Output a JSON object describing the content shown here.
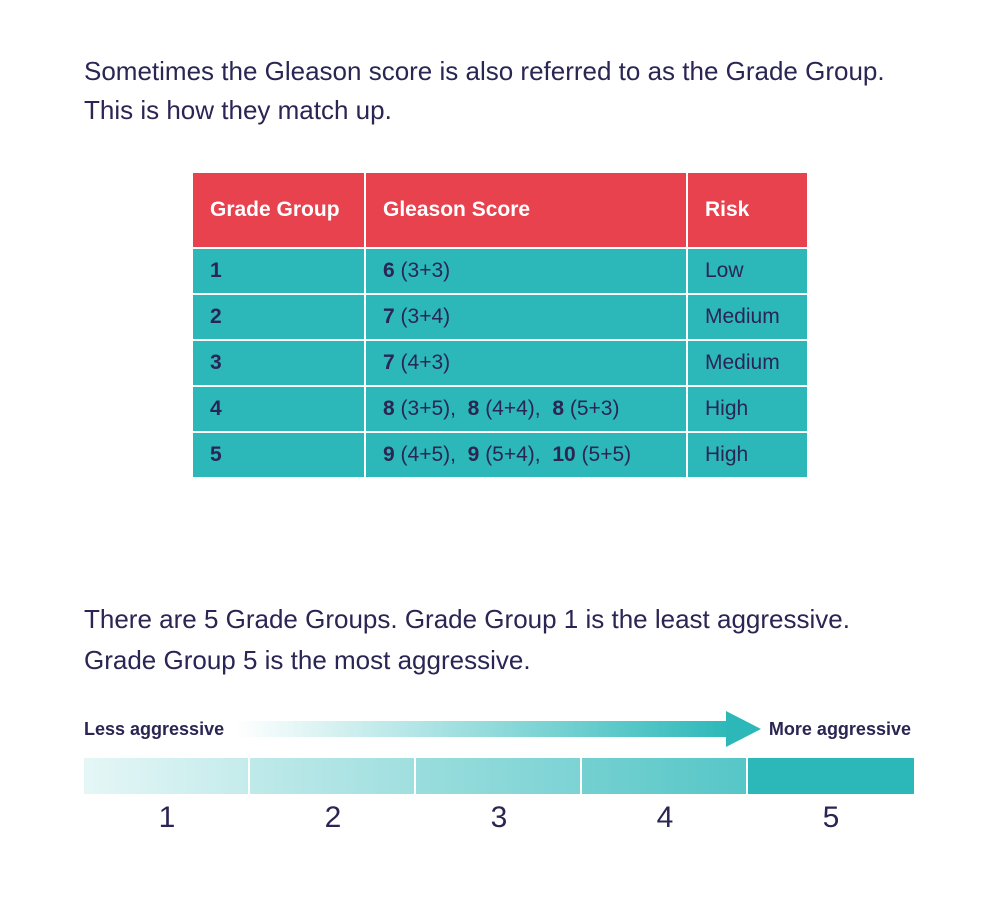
{
  "intro": {
    "line1": "Sometimes the Gleason score is also referred to as the Grade Group.",
    "line2": "This is how they match up."
  },
  "table": {
    "headers": [
      "Grade Group",
      "Gleason Score",
      "Risk"
    ],
    "rows": [
      {
        "group": "1",
        "scores": [
          {
            "value": "6",
            "detail": "(3+3)"
          }
        ],
        "risk": "Low"
      },
      {
        "group": "2",
        "scores": [
          {
            "value": "7",
            "detail": "(3+4)"
          }
        ],
        "risk": "Medium"
      },
      {
        "group": "3",
        "scores": [
          {
            "value": "7",
            "detail": "(4+3)"
          }
        ],
        "risk": "Medium"
      },
      {
        "group": "4",
        "scores": [
          {
            "value": "8",
            "detail": "(3+5)"
          },
          {
            "value": "8",
            "detail": "(4+4)"
          },
          {
            "value": "8",
            "detail": "(5+3)"
          }
        ],
        "risk": "High"
      },
      {
        "group": "5",
        "scores": [
          {
            "value": "9",
            "detail": "(4+5)"
          },
          {
            "value": "9",
            "detail": "(5+4)"
          },
          {
            "value": "10",
            "detail": "(5+5)"
          }
        ],
        "risk": "High"
      }
    ]
  },
  "outro": {
    "line1": "There are 5 Grade Groups. Grade Group 1 is the least aggressive.",
    "line2": "Grade Group 5 is the most aggressive."
  },
  "scale": {
    "left_label": "Less aggressive",
    "right_label": "More aggressive",
    "steps": [
      "1",
      "2",
      "3",
      "4",
      "5"
    ]
  },
  "colors": {
    "header_red": "#e8424f",
    "teal": "#2cb8b9",
    "text_navy": "#2a2553"
  }
}
